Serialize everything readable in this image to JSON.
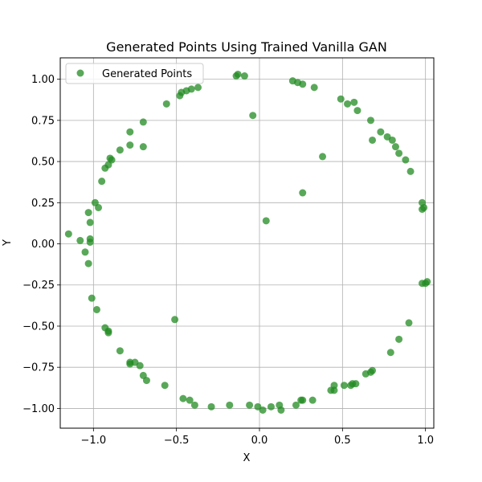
{
  "chart_data": {
    "type": "scatter",
    "title": "Generated Points Using Trained Vanilla GAN",
    "xlabel": "X",
    "ylabel": "Y",
    "xlim": [
      -1.2,
      1.05
    ],
    "ylim": [
      -1.12,
      1.13
    ],
    "xticks": [
      -1.0,
      -0.5,
      0.0,
      0.5,
      1.0
    ],
    "xtick_labels": [
      "−1.0",
      "−0.5",
      "0.0",
      "0.5",
      "1.0"
    ],
    "yticks": [
      -1.0,
      -0.75,
      -0.5,
      -0.25,
      0.0,
      0.25,
      0.5,
      0.75,
      1.0
    ],
    "ytick_labels": [
      "−1.00",
      "−0.75",
      "−0.50",
      "−0.25",
      "0.00",
      "0.25",
      "0.50",
      "0.75",
      "1.00"
    ],
    "grid": true,
    "legend_position": "top-left",
    "series": [
      {
        "name": "Generated Points",
        "color": "#228b22",
        "points": [
          [
            -0.13,
            1.03
          ],
          [
            -0.14,
            1.02
          ],
          [
            -0.09,
            1.02
          ],
          [
            -0.04,
            0.78
          ],
          [
            0.2,
            0.99
          ],
          [
            0.23,
            0.98
          ],
          [
            0.26,
            0.97
          ],
          [
            0.33,
            0.95
          ],
          [
            -0.37,
            0.95
          ],
          [
            -0.41,
            0.94
          ],
          [
            -0.44,
            0.93
          ],
          [
            -0.47,
            0.92
          ],
          [
            -0.48,
            0.9
          ],
          [
            -0.56,
            0.85
          ],
          [
            0.49,
            0.88
          ],
          [
            0.53,
            0.85
          ],
          [
            0.57,
            0.86
          ],
          [
            0.59,
            0.81
          ],
          [
            -0.78,
            0.68
          ],
          [
            -0.7,
            0.74
          ],
          [
            -0.78,
            0.6
          ],
          [
            -0.7,
            0.59
          ],
          [
            -0.84,
            0.57
          ],
          [
            -0.9,
            0.52
          ],
          [
            -0.89,
            0.51
          ],
          [
            -0.91,
            0.48
          ],
          [
            -0.93,
            0.46
          ],
          [
            -0.95,
            0.38
          ],
          [
            0.67,
            0.75
          ],
          [
            0.68,
            0.63
          ],
          [
            0.73,
            0.68
          ],
          [
            0.77,
            0.65
          ],
          [
            0.8,
            0.63
          ],
          [
            0.82,
            0.59
          ],
          [
            0.84,
            0.55
          ],
          [
            0.88,
            0.51
          ],
          [
            0.91,
            0.44
          ],
          [
            0.38,
            0.53
          ],
          [
            0.26,
            0.31
          ],
          [
            0.04,
            0.14
          ],
          [
            -0.99,
            0.25
          ],
          [
            -0.97,
            0.22
          ],
          [
            -1.03,
            0.19
          ],
          [
            -1.02,
            0.13
          ],
          [
            -1.15,
            0.06
          ],
          [
            -1.08,
            0.02
          ],
          [
            -1.02,
            0.03
          ],
          [
            -1.02,
            0.01
          ],
          [
            -1.05,
            -0.05
          ],
          [
            -1.03,
            -0.12
          ],
          [
            0.98,
            0.25
          ],
          [
            0.98,
            0.21
          ],
          [
            0.99,
            0.22
          ],
          [
            0.98,
            -0.24
          ],
          [
            1.01,
            -0.23
          ],
          [
            1.0,
            -0.24
          ],
          [
            -1.01,
            -0.33
          ],
          [
            -0.98,
            -0.4
          ],
          [
            0.9,
            -0.48
          ],
          [
            -0.51,
            -0.46
          ],
          [
            -0.93,
            -0.51
          ],
          [
            -0.91,
            -0.53
          ],
          [
            -0.91,
            -0.54
          ],
          [
            -0.84,
            -0.65
          ],
          [
            -0.78,
            -0.72
          ],
          [
            -0.78,
            -0.73
          ],
          [
            -0.75,
            -0.72
          ],
          [
            -0.72,
            -0.74
          ],
          [
            -0.7,
            -0.8
          ],
          [
            -0.68,
            -0.83
          ],
          [
            -0.57,
            -0.86
          ],
          [
            0.84,
            -0.58
          ],
          [
            0.79,
            -0.66
          ],
          [
            0.68,
            -0.77
          ],
          [
            0.67,
            -0.78
          ],
          [
            0.64,
            -0.79
          ],
          [
            0.58,
            -0.85
          ],
          [
            0.55,
            -0.86
          ],
          [
            0.56,
            -0.85
          ],
          [
            0.51,
            -0.86
          ],
          [
            0.45,
            -0.86
          ],
          [
            0.45,
            -0.89
          ],
          [
            0.43,
            -0.89
          ],
          [
            -0.46,
            -0.94
          ],
          [
            -0.42,
            -0.95
          ],
          [
            -0.39,
            -0.98
          ],
          [
            -0.29,
            -0.99
          ],
          [
            -0.18,
            -0.98
          ],
          [
            -0.06,
            -0.98
          ],
          [
            -0.01,
            -0.99
          ],
          [
            0.02,
            -1.01
          ],
          [
            0.07,
            -0.99
          ],
          [
            0.12,
            -0.98
          ],
          [
            0.13,
            -1.01
          ],
          [
            0.22,
            -0.98
          ],
          [
            0.25,
            -0.95
          ],
          [
            0.26,
            -0.95
          ],
          [
            0.32,
            -0.95
          ]
        ]
      }
    ]
  }
}
